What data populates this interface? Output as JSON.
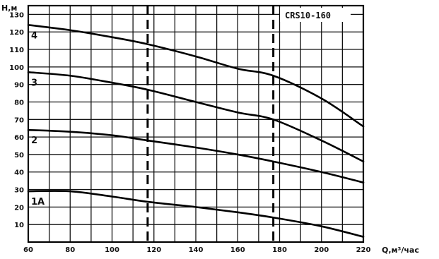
{
  "chart_data": {
    "type": "line",
    "title": "CRS10-160",
    "ylabel": "H,м",
    "xlabel": "Q,м³/час",
    "xlim": [
      60,
      220
    ],
    "ylim": [
      0,
      135
    ],
    "x_ticks": [
      60,
      80,
      100,
      120,
      140,
      160,
      180,
      200,
      220
    ],
    "y_ticks": [
      10,
      20,
      30,
      40,
      50,
      60,
      70,
      80,
      90,
      100,
      110,
      120,
      130
    ],
    "grid": true,
    "vertical_markers": [
      117,
      177
    ],
    "series": [
      {
        "name": "4",
        "x": [
          60,
          80,
          100,
          117,
          140,
          160,
          177,
          200,
          220
        ],
        "y": [
          124,
          121,
          117,
          113,
          106,
          99,
          95,
          82,
          66
        ]
      },
      {
        "name": "3",
        "x": [
          60,
          80,
          100,
          117,
          140,
          160,
          177,
          200,
          220
        ],
        "y": [
          97,
          95,
          91,
          87,
          80,
          74,
          70,
          58,
          46
        ]
      },
      {
        "name": "2",
        "x": [
          60,
          80,
          100,
          117,
          140,
          160,
          177,
          200,
          220
        ],
        "y": [
          64,
          63,
          61,
          58,
          54,
          50,
          46,
          40,
          34
        ]
      },
      {
        "name": "1A",
        "x": [
          60,
          80,
          100,
          117,
          140,
          160,
          177,
          200,
          220
        ],
        "y": [
          29,
          29,
          26,
          23,
          20,
          17,
          14,
          9,
          3
        ]
      }
    ]
  }
}
